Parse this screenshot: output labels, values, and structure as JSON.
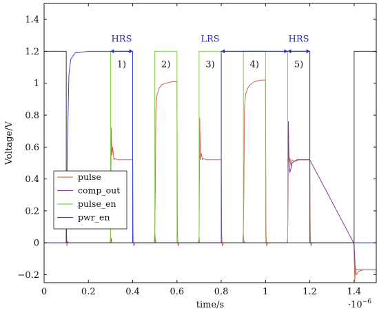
{
  "chart_data": {
    "type": "line",
    "xlabel": "time/s",
    "ylabel": "Voltage/V",
    "x_exponent_label": "·10",
    "x_exponent_power": "−6",
    "xlim": [
      0,
      1.5e-06
    ],
    "ylim": [
      -0.25,
      1.5
    ],
    "xticks": [
      0,
      2e-07,
      4e-07,
      6e-07,
      8e-07,
      1e-06,
      1.2e-06,
      1.4e-06
    ],
    "xtick_labels": [
      "0",
      "0.2",
      "0.4",
      "0.6",
      "0.8",
      "1",
      "1.2",
      "1.4"
    ],
    "yticks": [
      -0.2,
      0,
      0.2,
      0.4,
      0.6,
      0.8,
      1,
      1.2,
      1.4
    ],
    "ytick_labels": [
      "−0.2",
      "0",
      "0.2",
      "0.4",
      "0.6",
      "0.8",
      "1",
      "1.2",
      "1.4"
    ],
    "grid": false,
    "legend_position": "bottom-left",
    "series": [
      {
        "name": "pulse",
        "color": "#c8694b",
        "x": [
          0,
          1e-07,
          1.01e-07,
          1.03e-07,
          1.06e-07,
          1.1e-07,
          2.98e-07,
          3e-07,
          3.03e-07,
          3.06e-07,
          3.1e-07,
          3.15e-07,
          3.2e-07,
          3.3e-07,
          3.5e-07,
          4e-07,
          4.02e-07,
          4.05e-07,
          4.1e-07,
          4.98e-07,
          5e-07,
          5.02e-07,
          5.05e-07,
          5.1e-07,
          5.15e-07,
          5.2e-07,
          5.3e-07,
          5.5e-07,
          5.8e-07,
          6e-07,
          6.02e-07,
          6.05e-07,
          6.1e-07,
          6.98e-07,
          7e-07,
          7.03e-07,
          7.06e-07,
          7.1e-07,
          7.15e-07,
          7.2e-07,
          7.3e-07,
          7.5e-07,
          8e-07,
          8.02e-07,
          8.05e-07,
          8.1e-07,
          8.98e-07,
          9e-07,
          9.02e-07,
          9.05e-07,
          9.1e-07,
          9.15e-07,
          9.2e-07,
          9.3e-07,
          9.5e-07,
          9.8e-07,
          1e-06,
          1.002e-06,
          1.005e-06,
          1.01e-06,
          1.098e-06,
          1.1e-06,
          1.103e-06,
          1.106e-06,
          1.11e-06,
          1.115e-06,
          1.12e-06,
          1.13e-06,
          1.15e-06,
          1.2e-06,
          1.202e-06,
          1.205e-06,
          1.21e-06,
          1.398e-06,
          1.4e-06,
          1.403e-06,
          1.406e-06,
          1.41e-06,
          1.42e-06,
          1.44e-06,
          1.5e-06
        ],
        "y": [
          0,
          0,
          0.08,
          -0.02,
          0.01,
          0,
          0,
          0.04,
          0.72,
          0.55,
          0.6,
          0.52,
          0.53,
          0.52,
          0.52,
          0.52,
          0.05,
          -0.02,
          0,
          0,
          0.1,
          0.3,
          0.85,
          0.93,
          0.95,
          0.97,
          0.99,
          1.0,
          1.01,
          1.01,
          0.05,
          -0.02,
          0,
          0,
          0.04,
          0.78,
          0.52,
          0.56,
          0.52,
          0.53,
          0.52,
          0.52,
          0.52,
          0.05,
          -0.02,
          0,
          0,
          0.1,
          0.3,
          0.85,
          0.93,
          0.95,
          0.97,
          0.99,
          1.01,
          1.02,
          1.02,
          0.05,
          -0.02,
          0,
          0,
          0.04,
          0.74,
          0.5,
          0.53,
          0.48,
          0.52,
          0.51,
          0.52,
          0.52,
          0.05,
          -0.02,
          0,
          0,
          -0.05,
          -0.24,
          -0.16,
          -0.2,
          -0.18,
          -0.17,
          -0.17
        ]
      },
      {
        "name": "comp_out",
        "color": "#7d3c8a",
        "x": [
          0,
          3e-07,
          3.02e-07,
          3.05e-07,
          3.2e-07,
          4.98e-07,
          5e-07,
          5.02e-07,
          5.05e-07,
          5.2e-07,
          6.98e-07,
          7e-07,
          7.02e-07,
          7.05e-07,
          7.2e-07,
          8.98e-07,
          9e-07,
          9.02e-07,
          9.05e-07,
          9.2e-07,
          1.098e-06,
          1.1e-06,
          1.103e-06,
          1.106e-06,
          1.11e-06,
          1.12e-06,
          1.14e-06,
          1.2e-06,
          1.398e-06,
          1.4e-06,
          1.405e-06,
          1.41e-06,
          1.5e-06
        ],
        "y": [
          0,
          0,
          0.03,
          0,
          0,
          0,
          0.06,
          0.02,
          0,
          0,
          0,
          0.03,
          0,
          0,
          0,
          0,
          0.05,
          0.01,
          0,
          0,
          0,
          0.03,
          0.76,
          0.52,
          0.44,
          0.5,
          0.52,
          0.52,
          0,
          0,
          -0.16,
          -0.17,
          -0.17
        ]
      },
      {
        "name": "pulse_en",
        "color": "#7fd13b",
        "x": [
          0,
          3e-07,
          3e-07,
          4e-07,
          4e-07,
          5e-07,
          5e-07,
          6e-07,
          6e-07,
          7e-07,
          7e-07,
          8e-07,
          8e-07,
          9e-07,
          9e-07,
          1e-06,
          1e-06,
          1.1e-06,
          1.1e-06,
          1.2e-06,
          1.2e-06,
          1.5e-06
        ],
        "y": [
          0,
          0,
          1.2,
          1.2,
          0,
          0,
          1.2,
          1.2,
          0,
          0,
          1.2,
          1.2,
          0,
          0,
          1.2,
          1.2,
          0,
          0,
          1.2,
          1.2,
          0,
          0
        ]
      },
      {
        "name": "pwr_en",
        "color": "#3b3fd6",
        "x": [
          0,
          1e-07,
          1.05e-07,
          1.12e-07,
          1.2e-07,
          1.4e-07,
          2e-07,
          4e-07,
          4e-07,
          8e-07,
          8e-07,
          1.2e-06,
          1.2e-06,
          1.5e-06
        ],
        "y": [
          0,
          0,
          0.6,
          1.05,
          1.15,
          1.19,
          1.2,
          1.2,
          0,
          0,
          1.2,
          1.2,
          0,
          0
        ]
      },
      {
        "name": "",
        "color": "#333333",
        "x": [
          0,
          1e-07,
          1e-07,
          1.4e-06,
          1.4e-06,
          1.5e-06
        ],
        "y": [
          1.2,
          1.2,
          0,
          0,
          1.2,
          1.2
        ]
      }
    ],
    "annotations": [
      {
        "text": "HRS",
        "x": 3.5e-07,
        "y": 1.26,
        "color": "#2b2bd0"
      },
      {
        "text": "LRS",
        "x": 7.5e-07,
        "y": 1.26,
        "color": "#2b2bd0"
      },
      {
        "text": "HRS",
        "x": 1.15e-06,
        "y": 1.26,
        "color": "#2b2bd0"
      },
      {
        "text": "1)",
        "x": 3.5e-07,
        "y": 1.1,
        "color": "#111111"
      },
      {
        "text": "2)",
        "x": 5.5e-07,
        "y": 1.1,
        "color": "#111111"
      },
      {
        "text": "3)",
        "x": 7.5e-07,
        "y": 1.1,
        "color": "#111111"
      },
      {
        "text": "4)",
        "x": 9.5e-07,
        "y": 1.1,
        "color": "#111111"
      },
      {
        "text": "5)",
        "x": 1.15e-06,
        "y": 1.1,
        "color": "#111111"
      }
    ],
    "state_arrows": [
      {
        "x0": 3e-07,
        "x1": 4e-07,
        "y": 1.2,
        "color": "#2b2bd0"
      },
      {
        "x0": 8e-07,
        "x1": 1.1e-06,
        "y": 1.2,
        "color": "#2b2bd0"
      },
      {
        "x0": 1.1e-06,
        "x1": 1.2e-06,
        "y": 1.2,
        "color": "#2b2bd0"
      }
    ]
  }
}
